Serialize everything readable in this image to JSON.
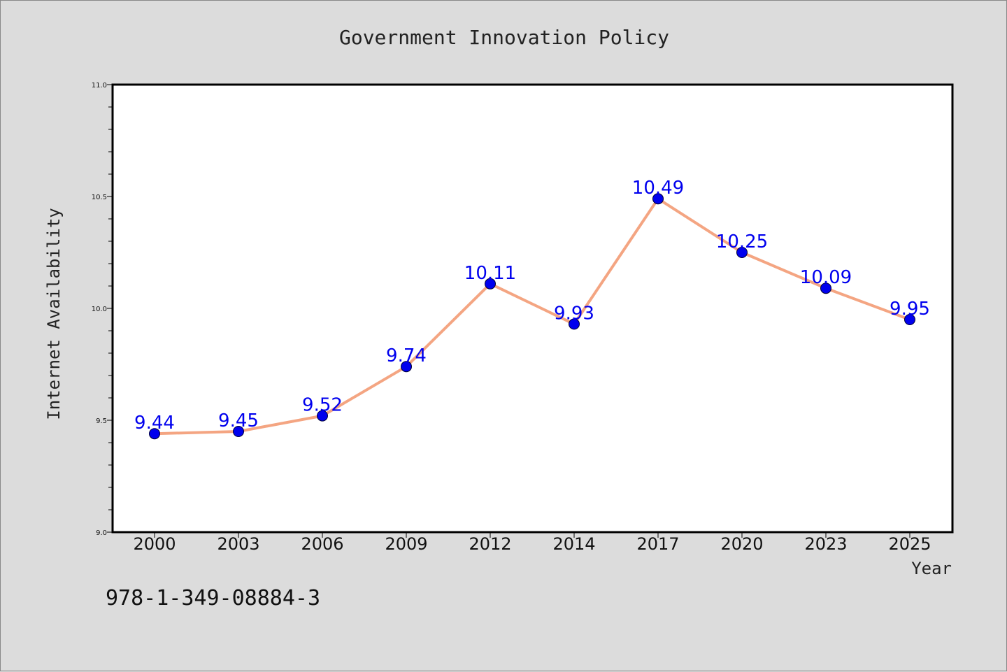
{
  "chart_data": {
    "type": "line",
    "title": "Government Innovation Policy",
    "xlabel": "Year",
    "ylabel": "Internet Availability",
    "categories": [
      "2000",
      "2003",
      "2006",
      "2009",
      "2012",
      "2014",
      "2017",
      "2020",
      "2023",
      "2025"
    ],
    "series": [
      {
        "values": [
          9.44,
          9.45,
          9.52,
          9.74,
          10.11,
          9.93,
          10.49,
          10.25,
          10.09,
          9.95
        ],
        "line_color": "#f4a582",
        "marker_color": "#0000ee"
      }
    ],
    "data_labels": [
      "9.44",
      "9.45",
      "9.52",
      "9.74",
      "10.11",
      "9.93",
      "10.49",
      "10.25",
      "10.09",
      "9.95"
    ],
    "ylim": [
      9.0,
      11.0
    ],
    "y_ticks": [
      9.0,
      9.5,
      10.0,
      10.5,
      11.0
    ],
    "y_tick_labels": [
      "9.0",
      "9.5",
      "10.0",
      "10.5",
      "11.0"
    ],
    "grid": false,
    "legend": "none"
  },
  "footnote": "978-1-349-08884-3"
}
